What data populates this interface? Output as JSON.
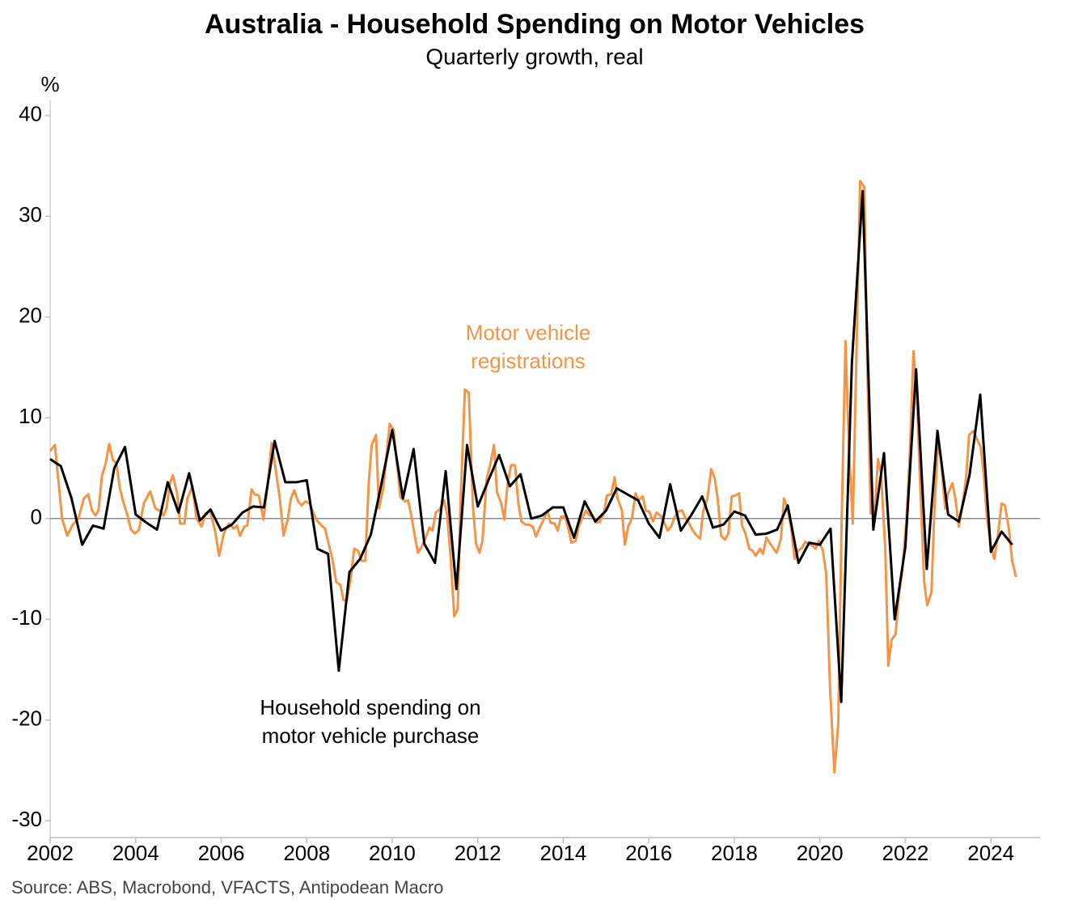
{
  "chart_data": {
    "type": "line",
    "title": "Australia - Household Spending on Motor Vehicles",
    "subtitle": "Quarterly growth, real",
    "y_unit": "%",
    "source": "Source: ABS, Macrobond, VFACTS, Antipodean Macro",
    "xlim": [
      2002,
      2025.15
    ],
    "xticks": [
      2002,
      2004,
      2006,
      2008,
      2010,
      2012,
      2014,
      2016,
      2018,
      2020,
      2022,
      2024
    ],
    "ylim": [
      -31.5,
      41.5
    ],
    "yticks": [
      -30,
      -20,
      -10,
      0,
      10,
      20,
      30,
      40
    ],
    "grid": false,
    "series": [
      {
        "label": [
          "Motor vehicle",
          "registrations"
        ],
        "color": "#f39447",
        "x": [
          2002.0,
          2002.11,
          2002.28,
          2002.4,
          2002.53,
          2002.66,
          2002.79,
          2002.89,
          2002.98,
          2003.06,
          2003.13,
          2003.21,
          2003.3,
          2003.38,
          2003.47,
          2003.55,
          2003.63,
          2003.72,
          2003.81,
          2003.89,
          2003.98,
          2004.08,
          2004.19,
          2004.34,
          2004.46,
          2004.55,
          2004.65,
          2004.72,
          2004.8,
          2004.87,
          2004.97,
          2005.04,
          2005.14,
          2005.21,
          2005.33,
          2005.42,
          2005.54,
          2005.63,
          2005.74,
          2005.86,
          2005.95,
          2006.06,
          2006.18,
          2006.29,
          2006.37,
          2006.44,
          2006.54,
          2006.61,
          2006.71,
          2006.78,
          2006.88,
          2006.99,
          2007.09,
          2007.18,
          2007.27,
          2007.37,
          2007.46,
          2007.56,
          2007.63,
          2007.71,
          2007.8,
          2007.88,
          2007.97,
          2008.07,
          2008.16,
          2008.24,
          2008.35,
          2008.43,
          2008.5,
          2008.6,
          2008.69,
          2008.79,
          2008.86,
          2008.94,
          2009.03,
          2009.11,
          2009.2,
          2009.28,
          2009.37,
          2009.45,
          2009.52,
          2009.62,
          2009.69,
          2009.79,
          2009.86,
          2009.94,
          2010.03,
          2010.11,
          2010.19,
          2010.3,
          2010.37,
          2010.45,
          2010.53,
          2010.6,
          2010.68,
          2010.77,
          2010.87,
          2010.94,
          2011.02,
          2011.11,
          2011.21,
          2011.28,
          2011.36,
          2011.45,
          2011.53,
          2011.6,
          2011.7,
          2011.79,
          2011.89,
          2011.96,
          2012.04,
          2012.11,
          2012.21,
          2012.3,
          2012.38,
          2012.45,
          2012.55,
          2012.62,
          2012.7,
          2012.78,
          2012.87,
          2012.95,
          2013.02,
          2013.12,
          2013.19,
          2013.29,
          2013.36,
          2013.44,
          2013.53,
          2013.63,
          2013.7,
          2013.8,
          2013.87,
          2013.95,
          2014.04,
          2014.12,
          2014.19,
          2014.29,
          2014.36,
          2014.44,
          2014.53,
          2014.61,
          2014.68,
          2014.78,
          2014.85,
          2014.95,
          2015.02,
          2015.12,
          2015.2,
          2015.27,
          2015.37,
          2015.44,
          2015.52,
          2015.61,
          2015.69,
          2015.76,
          2015.86,
          2015.93,
          2016.01,
          2016.1,
          2016.18,
          2016.27,
          2016.35,
          2016.44,
          2016.52,
          2016.61,
          2016.69,
          2016.78,
          2016.86,
          2016.93,
          2017.03,
          2017.1,
          2017.2,
          2017.27,
          2017.37,
          2017.46,
          2017.54,
          2017.61,
          2017.69,
          2017.78,
          2017.86,
          2017.94,
          2018.03,
          2018.11,
          2018.18,
          2018.26,
          2018.35,
          2018.43,
          2018.5,
          2018.6,
          2018.67,
          2018.75,
          2018.84,
          2018.92,
          2018.99,
          2019.09,
          2019.16,
          2019.24,
          2019.33,
          2019.41,
          2019.49,
          2019.58,
          2019.66,
          2019.73,
          2019.83,
          2019.9,
          2019.98,
          2020.07,
          2020.15,
          2020.24,
          2020.34,
          2020.43,
          2020.51,
          2020.6,
          2020.68,
          2020.77,
          2020.85,
          2020.94,
          2021.04,
          2021.11,
          2021.19,
          2021.28,
          2021.36,
          2021.43,
          2021.53,
          2021.6,
          2021.68,
          2021.77,
          2021.85,
          2021.92,
          2022.02,
          2022.1,
          2022.19,
          2022.27,
          2022.34,
          2022.44,
          2022.51,
          2022.61,
          2022.68,
          2022.76,
          2022.83,
          2022.93,
          2023.0,
          2023.1,
          2023.17,
          2023.25,
          2023.34,
          2023.42,
          2023.49,
          2023.59,
          2023.66,
          2023.76,
          2023.83,
          2023.91,
          2024.0,
          2024.08,
          2024.17,
          2024.25,
          2024.33,
          2024.42,
          2024.5,
          2024.59
        ],
        "values": [
          6.7,
          7.3,
          0,
          -1.7,
          -0.6,
          0,
          2.0,
          2.4,
          0.8,
          0.3,
          0.8,
          4.2,
          5.5,
          7.4,
          5.8,
          5.5,
          3.0,
          1.5,
          0.3,
          -1.1,
          -1.5,
          -1.1,
          1.5,
          2.7,
          1.0,
          0.8,
          0.3,
          1.0,
          3.5,
          4.3,
          2.5,
          -0.5,
          -0.5,
          2.0,
          3.2,
          0,
          -0.8,
          0.5,
          0.8,
          -1.3,
          -3.7,
          -1.5,
          -0.5,
          -1.0,
          -0.7,
          -1.7,
          -0.8,
          -0.7,
          2.9,
          2.4,
          2.3,
          -0.1,
          3.5,
          7.5,
          5.0,
          2.0,
          -1.7,
          0,
          2.0,
          2.8,
          1.7,
          1.3,
          1.7,
          1.5,
          0.5,
          -0.2,
          -0.7,
          -1.0,
          -2.3,
          -4.0,
          -6.3,
          -6.6,
          -8.1,
          -8.1,
          -5.9,
          -3.0,
          -3.2,
          -4.2,
          -4.2,
          3.5,
          7.3,
          8.3,
          1.0,
          3.0,
          6.0,
          9.4,
          8.8,
          5.5,
          2.1,
          1.7,
          1.8,
          0.2,
          -1.8,
          -3.4,
          -2.9,
          -2.0,
          -0.9,
          -1.2,
          0.6,
          0.9,
          1.8,
          0.5,
          -3.5,
          -9.7,
          -9.0,
          2.0,
          12.8,
          12.5,
          1.0,
          -2.5,
          -3.4,
          -2.2,
          4.0,
          5.5,
          7.3,
          2.6,
          1.5,
          -0.1,
          3.5,
          5.3,
          5.3,
          1.5,
          -0.3,
          -0.6,
          -0.6,
          -0.8,
          -1.8,
          -1.0,
          -0.2,
          0.8,
          -0.4,
          -0.5,
          -1.2,
          0.2,
          0.2,
          -1.0,
          -2.4,
          -2.2,
          -0.8,
          0.0,
          0.8,
          0.3,
          0.3,
          -0.4,
          -0.3,
          0.5,
          2.3,
          2.4,
          4.1,
          2.0,
          0.8,
          -2.6,
          -0.8,
          0.1,
          2.5,
          1.8,
          2.2,
          0.8,
          0.7,
          -0.3,
          0.6,
          0.3,
          -0.3,
          -1.2,
          -0.8,
          0.2,
          0.7,
          0.8,
          0.0,
          -0.4,
          -1.2,
          -1.6,
          -2.0,
          0.7,
          2.0,
          4.9,
          4.0,
          2.0,
          -1.7,
          -2.1,
          -1.5,
          2.2,
          2.3,
          2.5,
          -0.7,
          -1.5,
          -3.0,
          -3.2,
          -3.7,
          -3.0,
          -3.5,
          -1.9,
          -2.5,
          -3.0,
          -3.4,
          -2.0,
          2.0,
          1.1,
          -1.0,
          -4.0,
          -3.2,
          -2.9,
          -2.3,
          -2.5,
          -2.7,
          -3.0,
          -2.2,
          -3.2,
          -5.5,
          -17.0,
          -25.2,
          -20.4,
          0.0,
          17.6,
          7.0,
          -0.5,
          15.2,
          33.5,
          32.9,
          15.0,
          0.5,
          0.5,
          5.9,
          4.5,
          -3.0,
          -14.6,
          -12.0,
          -11.5,
          -7.5,
          -5.5,
          -0.5,
          6.0,
          16.6,
          12.0,
          4.0,
          -6.3,
          -8.6,
          -7.3,
          1.0,
          7.5,
          6.0,
          1.0,
          2.5,
          3.5,
          2.0,
          -0.8,
          1.5,
          4.0,
          8.3,
          8.7,
          8.0,
          7.1,
          4.5,
          0.0,
          -2.7,
          -4.0,
          -1.5,
          1.5,
          1.3,
          -1.0,
          -4.3,
          -5.8
        ]
      },
      {
        "label": [
          "Household spending on",
          "motor vehicle purchase"
        ],
        "color": "#000000",
        "x": [
          2002,
          2002.25,
          2002.5,
          2002.75,
          2003,
          2003.25,
          2003.5,
          2003.75,
          2004,
          2004.25,
          2004.5,
          2004.75,
          2005,
          2005.25,
          2005.5,
          2005.75,
          2006,
          2006.25,
          2006.5,
          2006.75,
          2007,
          2007.25,
          2007.5,
          2007.75,
          2008,
          2008.25,
          2008.5,
          2008.75,
          2009,
          2009.25,
          2009.5,
          2009.75,
          2010,
          2010.25,
          2010.5,
          2010.75,
          2011,
          2011.25,
          2011.5,
          2011.75,
          2012,
          2012.25,
          2012.5,
          2012.75,
          2013,
          2013.25,
          2013.5,
          2013.75,
          2014,
          2014.25,
          2014.5,
          2014.75,
          2015,
          2015.25,
          2015.5,
          2015.75,
          2016,
          2016.25,
          2016.5,
          2016.75,
          2017,
          2017.25,
          2017.5,
          2017.75,
          2018,
          2018.25,
          2018.5,
          2018.75,
          2019,
          2019.25,
          2019.5,
          2019.75,
          2020,
          2020.25,
          2020.5,
          2020.75,
          2021,
          2021.25,
          2021.5,
          2021.75,
          2022,
          2022.25,
          2022.5,
          2022.75,
          2023,
          2023.25,
          2023.5,
          2023.75,
          2024,
          2024.25,
          2024.5
        ],
        "values": [
          5.9,
          5.2,
          2.0,
          -2.6,
          -0.7,
          -1.0,
          5.0,
          7.1,
          0.4,
          -0.4,
          -1.1,
          3.6,
          0.6,
          4.5,
          -0.2,
          0.9,
          -1.2,
          -0.6,
          0.6,
          1.2,
          1.1,
          7.7,
          3.6,
          3.6,
          3.8,
          -3.0,
          -3.5,
          -15.1,
          -5.3,
          -4.0,
          -1.6,
          3.5,
          8.8,
          2.0,
          6.9,
          -2.5,
          -4.4,
          4.7,
          -7.0,
          7.3,
          1.2,
          3.8,
          6.3,
          3.2,
          4.4,
          0.0,
          0.3,
          1.1,
          1.1,
          -1.9,
          1.7,
          -0.3,
          0.8,
          3.0,
          2.4,
          1.8,
          -0.5,
          -1.9,
          3.4,
          -1.2,
          0.4,
          2.2,
          -0.9,
          -0.6,
          0.7,
          0.3,
          -1.6,
          -1.5,
          -1.1,
          1.3,
          -4.4,
          -2.4,
          -2.6,
          -1.0,
          -18.2,
          15.5,
          32.5,
          -1.1,
          6.5,
          -10.0,
          -2.8,
          14.8,
          -5.0,
          8.7,
          0.4,
          -0.3,
          4.3,
          12.3,
          -3.3,
          -1.3,
          -2.6
        ]
      }
    ]
  }
}
